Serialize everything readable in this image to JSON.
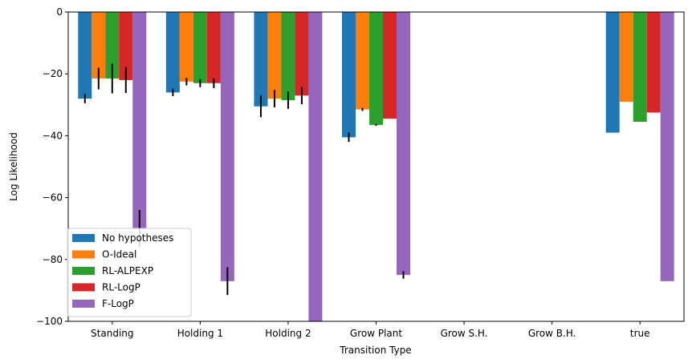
{
  "chart_data": {
    "type": "bar",
    "title": "",
    "xlabel": "Transition Type",
    "ylabel": "Log Likelihood",
    "ylim": [
      -100,
      0
    ],
    "yticks": [
      0,
      -20,
      -40,
      -60,
      -80,
      -100
    ],
    "ytick_labels": [
      "0",
      "−20",
      "−40",
      "−60",
      "−80",
      "−100"
    ],
    "categories": [
      "Standing",
      "Holding 1",
      "Holding 2",
      "Grow Plant",
      "Grow S.H.",
      "Grow B.H.",
      "true"
    ],
    "legend_location": "lower-left",
    "series": [
      {
        "name": "No hypotheses",
        "color": "#1f77b4",
        "values": [
          -28,
          -26,
          -30.5,
          -40.5,
          null,
          null,
          -39
        ],
        "errors": [
          1.5,
          1.2,
          3.5,
          1.5,
          null,
          null,
          null
        ]
      },
      {
        "name": "O-Ideal",
        "color": "#ff7f0e",
        "values": [
          -21.5,
          -22.5,
          -28,
          -31.5,
          null,
          null,
          -29
        ],
        "errors": [
          3.5,
          1.2,
          2.8,
          0.5,
          null,
          null,
          null
        ]
      },
      {
        "name": "RL-ALPEXP",
        "color": "#2ca02c",
        "values": [
          -21.5,
          -23,
          -28.5,
          -36.5,
          null,
          null,
          -35.5
        ],
        "errors": [
          4.8,
          1.3,
          2.8,
          0.3,
          null,
          null,
          null
        ]
      },
      {
        "name": "RL-LogP",
        "color": "#d62728",
        "values": [
          -22,
          -23,
          -27,
          -34.5,
          null,
          null,
          -32.5
        ],
        "errors": [
          4.2,
          1.6,
          2.8,
          null,
          null,
          null,
          null
        ]
      },
      {
        "name": "F-LogP",
        "color": "#9467bd",
        "values": [
          -70,
          -87,
          -100,
          -85,
          null,
          null,
          -87
        ],
        "errors": [
          6,
          4.5,
          null,
          1.2,
          null,
          null,
          null
        ]
      }
    ]
  }
}
